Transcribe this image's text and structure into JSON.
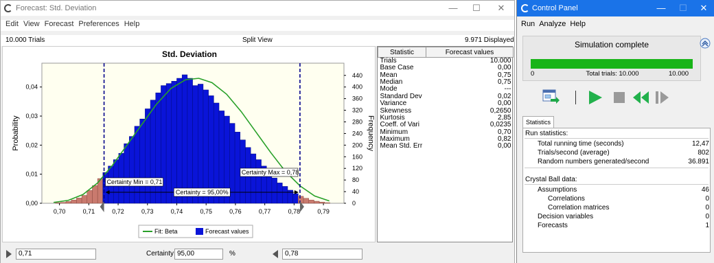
{
  "forecast_window": {
    "title": "Forecast: Std. Deviation",
    "menu": [
      "Edit",
      "View",
      "Forecast",
      "Preferences",
      "Help"
    ],
    "trials_label": "10.000 Trials",
    "view_label": "Split View",
    "displayed_label": "9.971 Displayed",
    "bottom": {
      "left_value": "0,71",
      "certainty_label": "Certainty:",
      "certainty_value": "95,00",
      "percent_sign": "%",
      "right_value": "0,78"
    }
  },
  "chart_data": {
    "type": "bar",
    "title": "Std. Deviation",
    "xlabel": "",
    "ylabel": "Probability",
    "y2label": "Frequency",
    "xlim": [
      0.694,
      0.797
    ],
    "ylim": [
      0,
      0.0482
    ],
    "y2lim": [
      0,
      482
    ],
    "x_ticks": [
      "0,70",
      "0,71",
      "0,72",
      "0,73",
      "0,74",
      "0,75",
      "0,76",
      "0,77",
      "0,78",
      "0,79"
    ],
    "y_ticks": [
      "0,00",
      "0,01",
      "0,02",
      "0,03",
      "0,04"
    ],
    "y2_ticks": [
      "0",
      "40",
      "80",
      "120",
      "160",
      "200",
      "240",
      "280",
      "320",
      "360",
      "400",
      "440"
    ],
    "bin_width": 0.0018,
    "x": [
      0.6995,
      0.7013,
      0.7031,
      0.7049,
      0.7067,
      0.7085,
      0.7103,
      0.7121,
      0.7139,
      0.7157,
      0.7175,
      0.7193,
      0.7211,
      0.7229,
      0.7247,
      0.7265,
      0.7283,
      0.7301,
      0.7319,
      0.7337,
      0.7355,
      0.7373,
      0.7391,
      0.7409,
      0.7427,
      0.7445,
      0.7463,
      0.7481,
      0.7499,
      0.7517,
      0.7535,
      0.7553,
      0.7571,
      0.7589,
      0.7607,
      0.7625,
      0.7643,
      0.7661,
      0.7679,
      0.7697,
      0.7715,
      0.7733,
      0.7751,
      0.7769,
      0.7787,
      0.7805,
      0.7823,
      0.7841,
      0.7859,
      0.7877,
      0.7895,
      0.7913
    ],
    "values": [
      0.0002,
      0.0003,
      0.0006,
      0.0011,
      0.0018,
      0.0027,
      0.0044,
      0.0061,
      0.0085,
      0.0106,
      0.0128,
      0.015,
      0.0172,
      0.0205,
      0.023,
      0.0265,
      0.029,
      0.0325,
      0.0355,
      0.038,
      0.0405,
      0.0412,
      0.042,
      0.043,
      0.0442,
      0.043,
      0.0405,
      0.041,
      0.039,
      0.037,
      0.0345,
      0.0318,
      0.03,
      0.0275,
      0.0245,
      0.0218,
      0.0192,
      0.017,
      0.015,
      0.0128,
      0.0108,
      0.0087,
      0.007,
      0.0058,
      0.0045,
      0.0033,
      0.0024,
      0.0017,
      0.0011,
      0.0007,
      0.0004,
      0.0002
    ],
    "fit_x": [
      0.698,
      0.703,
      0.708,
      0.713,
      0.718,
      0.723,
      0.728,
      0.733,
      0.738,
      0.743,
      0.7475,
      0.752,
      0.757,
      0.762,
      0.767,
      0.772,
      0.777,
      0.782,
      0.787,
      0.792
    ],
    "fit_y": [
      0.0003,
      0.001,
      0.003,
      0.007,
      0.013,
      0.02,
      0.027,
      0.034,
      0.0395,
      0.0425,
      0.043,
      0.0415,
      0.0375,
      0.0315,
      0.0245,
      0.0175,
      0.011,
      0.006,
      0.0025,
      0.0008
    ],
    "certainty_min": 0.7152,
    "certainty_max": 0.782,
    "label_min": "Certainty Min = 0,71",
    "label_max": "Certainty Max = 0,78",
    "label_certainty": "Certainty = 95,00%",
    "legend": [
      "Fit: Beta",
      "Forecast values"
    ],
    "colors": {
      "in_range": "#0a14d8",
      "out_range": "#c97a6e",
      "fit": "#28a028",
      "plot_bg": "#fffff0",
      "marker": "#00008b"
    }
  },
  "stats_table": {
    "headers": [
      "Statistic",
      "Forecast values"
    ],
    "rows": [
      [
        "Trials",
        "10.000"
      ],
      [
        "Base Case",
        "0,00"
      ],
      [
        "Mean",
        "0,75"
      ],
      [
        "Median",
        "0,75"
      ],
      [
        "Mode",
        "---"
      ],
      [
        "Standard Dev",
        "0,02"
      ],
      [
        "Variance",
        "0,00"
      ],
      [
        "Skewness",
        "0,2650"
      ],
      [
        "Kurtosis",
        "2,85"
      ],
      [
        "Coeff. of Vari",
        "0,0235"
      ],
      [
        "Minimum",
        "0,70"
      ],
      [
        "Maximum",
        "0,82"
      ],
      [
        "Mean Std. Err",
        "0,00"
      ]
    ]
  },
  "control_panel": {
    "title": "Control Panel",
    "menu": [
      "Run",
      "Analyze",
      "Help"
    ],
    "status": "Simulation complete",
    "progress": {
      "min": "0",
      "label": "Total trials: 10.000",
      "max": "10.000",
      "fraction": 1.0
    },
    "tab": "Statistics",
    "run_stats": {
      "header": "Run statistics:",
      "items": [
        [
          "Total running time (seconds)",
          "12,47"
        ],
        [
          "Trials/second (average)",
          "802"
        ],
        [
          "Random numbers generated/second",
          "36.891"
        ]
      ]
    },
    "cb_data": {
      "header": "Crystal Ball data:",
      "assumptions": [
        "Assumptions",
        "46"
      ],
      "sub": [
        [
          "Correlations",
          "0"
        ],
        [
          "Correlation matrices",
          "0"
        ]
      ],
      "other": [
        [
          "Decision variables",
          "0"
        ],
        [
          "Forecasts",
          "1"
        ]
      ]
    },
    "colors": {
      "titlebar": "#1a73e8",
      "progress": "#18b418",
      "play": "#22b14c"
    }
  }
}
